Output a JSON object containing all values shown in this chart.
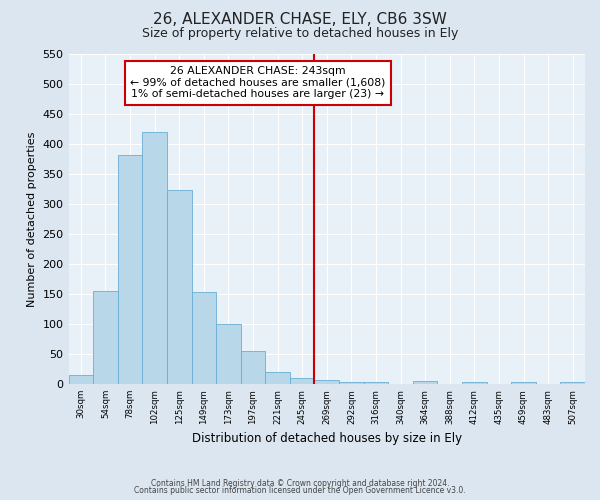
{
  "title": "26, ALEXANDER CHASE, ELY, CB6 3SW",
  "subtitle": "Size of property relative to detached houses in Ely",
  "xlabel": "Distribution of detached houses by size in Ely",
  "ylabel": "Number of detached properties",
  "bin_labels": [
    "30sqm",
    "54sqm",
    "78sqm",
    "102sqm",
    "125sqm",
    "149sqm",
    "173sqm",
    "197sqm",
    "221sqm",
    "245sqm",
    "269sqm",
    "292sqm",
    "316sqm",
    "340sqm",
    "364sqm",
    "388sqm",
    "412sqm",
    "435sqm",
    "459sqm",
    "483sqm",
    "507sqm"
  ],
  "bar_heights": [
    15,
    155,
    382,
    420,
    323,
    153,
    100,
    55,
    20,
    10,
    6,
    4,
    3,
    0,
    5,
    0,
    4,
    0,
    4,
    0,
    4
  ],
  "bar_color": "#b8d8ea",
  "bar_edge_color": "#6aaed6",
  "ylim": [
    0,
    550
  ],
  "yticks": [
    0,
    50,
    100,
    150,
    200,
    250,
    300,
    350,
    400,
    450,
    500,
    550
  ],
  "vline_x": 9,
  "vline_color": "#cc0000",
  "annotation_title": "26 ALEXANDER CHASE: 243sqm",
  "annotation_line1": "← 99% of detached houses are smaller (1,608)",
  "annotation_line2": "1% of semi-detached houses are larger (23) →",
  "annotation_box_color": "#ffffff",
  "annotation_box_edgecolor": "#cc0000",
  "footer1": "Contains HM Land Registry data © Crown copyright and database right 2024.",
  "footer2": "Contains public sector information licensed under the Open Government Licence v3.0.",
  "bg_color": "#dce6f0",
  "plot_bg_color": "#e8f0f8",
  "grid_color": "#ffffff"
}
